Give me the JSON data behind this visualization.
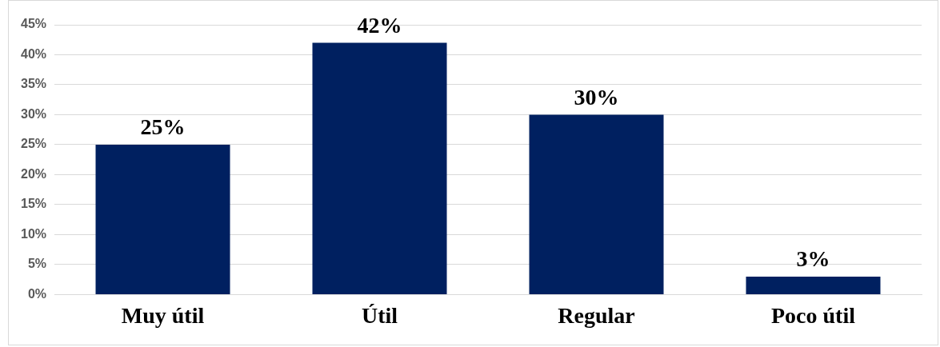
{
  "chart_data": {
    "type": "bar",
    "categories": [
      "Muy útil",
      "Útil",
      "Regular",
      "Poco útil"
    ],
    "values": [
      25,
      42,
      30,
      3
    ],
    "value_labels": [
      "25%",
      "42%",
      "30%",
      "3%"
    ],
    "color": "#002060",
    "ylim": [
      0,
      45
    ],
    "yticks": [
      {
        "value": 0,
        "label": "0%"
      },
      {
        "value": 5,
        "label": "5%"
      },
      {
        "value": 10,
        "label": "10%"
      },
      {
        "value": 15,
        "label": "15%"
      },
      {
        "value": 20,
        "label": "20%"
      },
      {
        "value": 25,
        "label": "25%"
      },
      {
        "value": 30,
        "label": "30%"
      },
      {
        "value": 35,
        "label": "35%"
      },
      {
        "value": 40,
        "label": "40%"
      },
      {
        "value": 45,
        "label": "45%"
      }
    ],
    "grid": "y",
    "legend": false
  }
}
